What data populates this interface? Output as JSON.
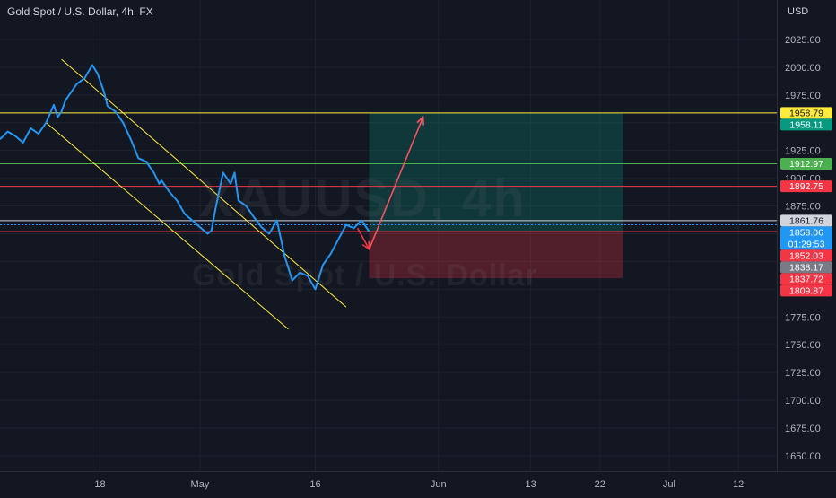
{
  "header": {
    "title": "Gold Spot / U.S. Dollar, 4h, FX"
  },
  "watermark": {
    "symbol": "XAUUSD, 4h",
    "name": "Gold Spot / U.S. Dollar"
  },
  "chart_data": {
    "type": "line",
    "currency": "USD",
    "ylim": [
      1640,
      2045
    ],
    "y_ticks": [
      1650,
      1675,
      1700,
      1725,
      1750,
      1775,
      1800,
      1825,
      1850,
      1875,
      1900,
      1925,
      1950,
      1975,
      2000,
      2025
    ],
    "y_tick_labels": [
      "1650.00",
      "1675.00",
      "1700.00",
      "1725.00",
      "1750.00",
      "1775.00",
      "1800.00",
      "1825.00",
      "1850.00",
      "1875.00",
      "1900.00",
      "1925.00",
      "1950.00",
      "1975.00",
      "2000.00",
      "2025.00"
    ],
    "x_ticks": [
      {
        "label": "18",
        "t": 13
      },
      {
        "label": "May",
        "t": 26
      },
      {
        "label": "16",
        "t": 41
      },
      {
        "label": "Jun",
        "t": 57
      },
      {
        "label": "13",
        "t": 69
      },
      {
        "label": "22",
        "t": 78
      },
      {
        "label": "Jul",
        "t": 87
      },
      {
        "label": "12",
        "t": 96
      }
    ],
    "x_range": [
      0,
      101
    ],
    "series": [
      {
        "color": "#2196f3",
        "t": [
          0,
          1,
          2,
          3,
          4,
          5,
          6,
          7,
          7.5,
          8,
          8.5,
          9,
          10,
          11,
          12,
          12.7,
          13.5,
          14,
          15,
          16,
          17,
          18,
          19,
          20,
          20.7,
          21,
          22,
          23,
          24,
          25,
          26,
          27,
          27.5,
          28,
          29,
          30,
          30.5,
          31,
          32,
          33,
          34,
          35,
          36,
          37,
          38,
          39,
          40,
          41,
          42,
          43,
          44,
          45,
          46,
          47,
          48
        ],
        "values": [
          1935,
          1942,
          1938,
          1932,
          1945,
          1940,
          1950,
          1966,
          1955,
          1960,
          1970,
          1975,
          1985,
          1990,
          2002,
          1994,
          1978,
          1965,
          1960,
          1950,
          1935,
          1918,
          1915,
          1905,
          1895,
          1898,
          1888,
          1880,
          1868,
          1862,
          1856,
          1850,
          1853,
          1872,
          1905,
          1895,
          1905,
          1880,
          1875,
          1865,
          1856,
          1850,
          1862,
          1830,
          1808,
          1815,
          1812,
          1800,
          1822,
          1832,
          1845,
          1858,
          1855,
          1862,
          1852
        ]
      }
    ],
    "horizontal_levels": [
      {
        "value": 1958.79,
        "label": "1958.79",
        "color": "#ffeb3b",
        "text_color": "#131722"
      },
      {
        "value": 1958.11,
        "label": "1958.11",
        "color": "#089981",
        "text_color": "#ffffff"
      },
      {
        "value": 1912.97,
        "label": "1912.97",
        "color": "#4caf50",
        "text_color": "#ffffff"
      },
      {
        "value": 1892.75,
        "label": "1892.75",
        "color": "#f23645",
        "text_color": "#ffffff"
      },
      {
        "value": 1861.76,
        "label": "1861.76",
        "color": "#d1d4dc",
        "text_color": "#131722"
      },
      {
        "value": 1858.06,
        "label": "1858.06",
        "color": "#2196f3",
        "text_color": "#ffffff"
      },
      {
        "value": 1852.03,
        "label": "1852.03",
        "color": "#f23645",
        "text_color": "#ffffff"
      },
      {
        "value": 1838.17,
        "label": "1838.17",
        "color": "#787b86",
        "text_color": "#ffffff"
      },
      {
        "value": 1837.72,
        "label": "1837.72",
        "color": "#f23645",
        "text_color": "#ffffff"
      },
      {
        "value": 1809.87,
        "label": "1809.87",
        "color": "#f23645",
        "text_color": "#ffffff"
      }
    ],
    "countdown": "01:29:53",
    "channel": {
      "upper": {
        "t0": 8,
        "v0": 2007,
        "t1": 45,
        "v1": 1784
      },
      "lower": {
        "t0": 6,
        "v0": 1950,
        "t1": 37.5,
        "v1": 1764
      }
    },
    "position": {
      "entry": 1852.03,
      "target": 1958.79,
      "stop": 1809.87,
      "t_start": 48,
      "t_end": 81,
      "profit_color": "#089981",
      "loss_color": "#f23645"
    },
    "arrows": [
      {
        "t0": 46.5,
        "v0": 1855,
        "t1": 48,
        "v1": 1836,
        "color": "#f23645"
      },
      {
        "t0": 48,
        "v0": 1836,
        "t1": 55,
        "v1": 1955,
        "color": "#f7525f"
      }
    ]
  }
}
